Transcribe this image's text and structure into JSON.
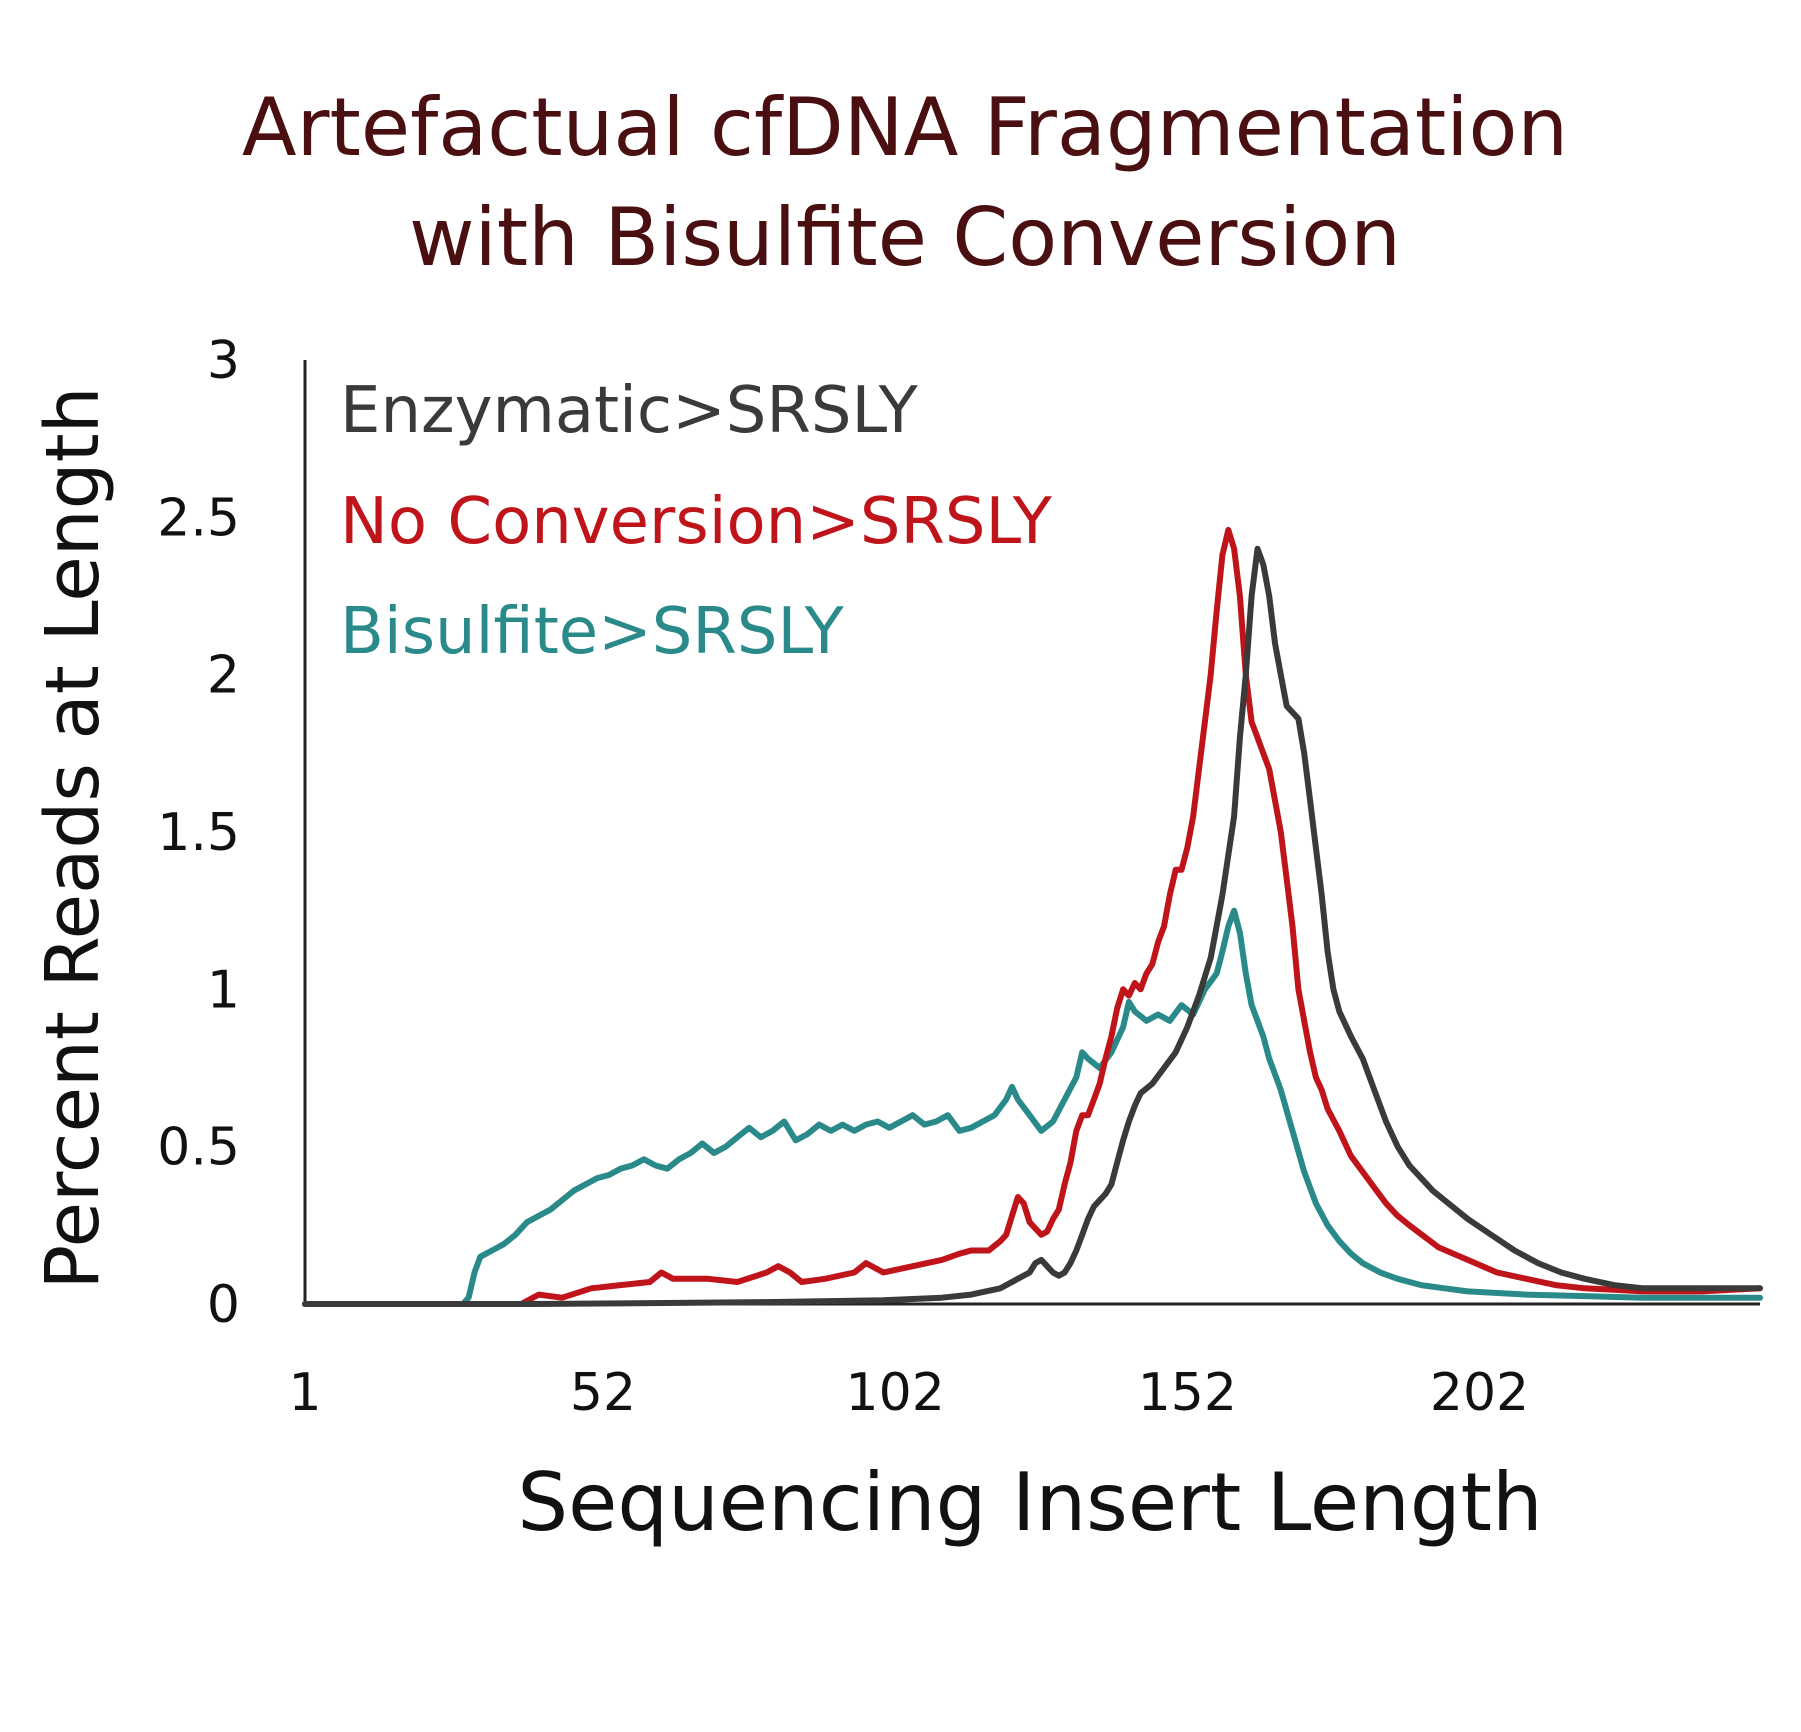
{
  "chart_data": {
    "type": "line",
    "title": [
      "Artefactual cfDNA Fragmentation",
      "with Bisulfite Conversion"
    ],
    "xlabel": "Sequencing Insert Length",
    "ylabel": "Percent Reads at Length",
    "xlim": [
      1,
      250
    ],
    "ylim": [
      0,
      3
    ],
    "x_ticks": [
      "1",
      "52",
      "102",
      "152",
      "202"
    ],
    "y_ticks": [
      "0",
      "0.5",
      "1",
      "1.5",
      "2",
      "2.5",
      "3"
    ],
    "grid": false,
    "legend_position": "top-left",
    "colors": {
      "title": "#4a0f10",
      "axis_text": "#111111",
      "axis_line": "#222222"
    },
    "series": [
      {
        "name": "Enzymatic>SRSLY",
        "color": "#3a3a3a",
        "points": [
          [
            1,
            0
          ],
          [
            40,
            0
          ],
          [
            60,
            0.003
          ],
          [
            80,
            0.006
          ],
          [
            100,
            0.012
          ],
          [
            110,
            0.02
          ],
          [
            115,
            0.03
          ],
          [
            120,
            0.05
          ],
          [
            123,
            0.08
          ],
          [
            125,
            0.1
          ],
          [
            126,
            0.13
          ],
          [
            127,
            0.14
          ],
          [
            128,
            0.12
          ],
          [
            129,
            0.1
          ],
          [
            130,
            0.09
          ],
          [
            131,
            0.1
          ],
          [
            132,
            0.13
          ],
          [
            133,
            0.17
          ],
          [
            134,
            0.22
          ],
          [
            135,
            0.27
          ],
          [
            136,
            0.31
          ],
          [
            137,
            0.33
          ],
          [
            138,
            0.35
          ],
          [
            139,
            0.38
          ],
          [
            140,
            0.45
          ],
          [
            141,
            0.52
          ],
          [
            142,
            0.58
          ],
          [
            143,
            0.63
          ],
          [
            144,
            0.67
          ],
          [
            146,
            0.7
          ],
          [
            148,
            0.75
          ],
          [
            150,
            0.8
          ],
          [
            152,
            0.88
          ],
          [
            154,
            0.98
          ],
          [
            156,
            1.1
          ],
          [
            158,
            1.3
          ],
          [
            160,
            1.55
          ],
          [
            161,
            1.8
          ],
          [
            162,
            2.0
          ],
          [
            163,
            2.25
          ],
          [
            164,
            2.4
          ],
          [
            165,
            2.35
          ],
          [
            166,
            2.25
          ],
          [
            167,
            2.1
          ],
          [
            168,
            2.0
          ],
          [
            169,
            1.9
          ],
          [
            170,
            1.88
          ],
          [
            171,
            1.86
          ],
          [
            172,
            1.75
          ],
          [
            173,
            1.6
          ],
          [
            174,
            1.45
          ],
          [
            175,
            1.3
          ],
          [
            176,
            1.12
          ],
          [
            177,
            1.0
          ],
          [
            178,
            0.93
          ],
          [
            180,
            0.85
          ],
          [
            182,
            0.78
          ],
          [
            184,
            0.68
          ],
          [
            186,
            0.58
          ],
          [
            188,
            0.5
          ],
          [
            190,
            0.44
          ],
          [
            192,
            0.4
          ],
          [
            194,
            0.36
          ],
          [
            196,
            0.33
          ],
          [
            198,
            0.3
          ],
          [
            200,
            0.27
          ],
          [
            204,
            0.22
          ],
          [
            208,
            0.17
          ],
          [
            212,
            0.13
          ],
          [
            216,
            0.1
          ],
          [
            220,
            0.08
          ],
          [
            225,
            0.06
          ],
          [
            230,
            0.05
          ],
          [
            240,
            0.05
          ],
          [
            245,
            0.05
          ],
          [
            250,
            0.05
          ]
        ]
      },
      {
        "name": "No Conversion>SRSLY",
        "color": "#c0141b",
        "points": [
          [
            1,
            0
          ],
          [
            38,
            0
          ],
          [
            39,
            0.01
          ],
          [
            41,
            0.03
          ],
          [
            45,
            0.02
          ],
          [
            50,
            0.05
          ],
          [
            55,
            0.06
          ],
          [
            60,
            0.07
          ],
          [
            62,
            0.1
          ],
          [
            64,
            0.08
          ],
          [
            70,
            0.08
          ],
          [
            75,
            0.07
          ],
          [
            80,
            0.1
          ],
          [
            82,
            0.12
          ],
          [
            84,
            0.1
          ],
          [
            86,
            0.07
          ],
          [
            90,
            0.08
          ],
          [
            95,
            0.1
          ],
          [
            97,
            0.13
          ],
          [
            100,
            0.1
          ],
          [
            105,
            0.12
          ],
          [
            110,
            0.14
          ],
          [
            113,
            0.16
          ],
          [
            115,
            0.17
          ],
          [
            118,
            0.17
          ],
          [
            120,
            0.2
          ],
          [
            121,
            0.22
          ],
          [
            122,
            0.28
          ],
          [
            123,
            0.34
          ],
          [
            124,
            0.32
          ],
          [
            125,
            0.26
          ],
          [
            126,
            0.24
          ],
          [
            127,
            0.22
          ],
          [
            128,
            0.23
          ],
          [
            129,
            0.27
          ],
          [
            130,
            0.3
          ],
          [
            131,
            0.38
          ],
          [
            132,
            0.45
          ],
          [
            133,
            0.55
          ],
          [
            134,
            0.6
          ],
          [
            135,
            0.6
          ],
          [
            136,
            0.65
          ],
          [
            137,
            0.7
          ],
          [
            138,
            0.78
          ],
          [
            139,
            0.85
          ],
          [
            140,
            0.94
          ],
          [
            141,
            1.0
          ],
          [
            142,
            0.98
          ],
          [
            143,
            1.02
          ],
          [
            144,
            1.0
          ],
          [
            145,
            1.05
          ],
          [
            146,
            1.08
          ],
          [
            147,
            1.15
          ],
          [
            148,
            1.2
          ],
          [
            149,
            1.3
          ],
          [
            150,
            1.38
          ],
          [
            151,
            1.38
          ],
          [
            152,
            1.45
          ],
          [
            153,
            1.55
          ],
          [
            154,
            1.7
          ],
          [
            155,
            1.85
          ],
          [
            156,
            2.0
          ],
          [
            157,
            2.2
          ],
          [
            158,
            2.38
          ],
          [
            159,
            2.46
          ],
          [
            160,
            2.4
          ],
          [
            161,
            2.25
          ],
          [
            162,
            2.0
          ],
          [
            163,
            1.85
          ],
          [
            164,
            1.8
          ],
          [
            165,
            1.75
          ],
          [
            166,
            1.7
          ],
          [
            167,
            1.6
          ],
          [
            168,
            1.5
          ],
          [
            169,
            1.35
          ],
          [
            170,
            1.2
          ],
          [
            171,
            1.0
          ],
          [
            172,
            0.9
          ],
          [
            173,
            0.8
          ],
          [
            174,
            0.72
          ],
          [
            175,
            0.68
          ],
          [
            176,
            0.62
          ],
          [
            178,
            0.55
          ],
          [
            180,
            0.47
          ],
          [
            182,
            0.42
          ],
          [
            184,
            0.37
          ],
          [
            186,
            0.32
          ],
          [
            188,
            0.28
          ],
          [
            190,
            0.25
          ],
          [
            195,
            0.18
          ],
          [
            200,
            0.14
          ],
          [
            205,
            0.1
          ],
          [
            210,
            0.08
          ],
          [
            215,
            0.06
          ],
          [
            220,
            0.05
          ],
          [
            225,
            0.045
          ],
          [
            230,
            0.04
          ],
          [
            240,
            0.04
          ],
          [
            250,
            0.05
          ]
        ]
      },
      {
        "name": "Bisulfite>SRSLY",
        "color": "#2a8a8a",
        "points": [
          [
            1,
            0
          ],
          [
            28,
            0
          ],
          [
            29,
            0.02
          ],
          [
            30,
            0.1
          ],
          [
            31,
            0.15
          ],
          [
            33,
            0.17
          ],
          [
            35,
            0.19
          ],
          [
            37,
            0.22
          ],
          [
            39,
            0.26
          ],
          [
            41,
            0.28
          ],
          [
            43,
            0.3
          ],
          [
            45,
            0.33
          ],
          [
            47,
            0.36
          ],
          [
            49,
            0.38
          ],
          [
            51,
            0.4
          ],
          [
            53,
            0.41
          ],
          [
            55,
            0.43
          ],
          [
            57,
            0.44
          ],
          [
            59,
            0.46
          ],
          [
            61,
            0.44
          ],
          [
            63,
            0.43
          ],
          [
            65,
            0.46
          ],
          [
            67,
            0.48
          ],
          [
            69,
            0.51
          ],
          [
            71,
            0.48
          ],
          [
            73,
            0.5
          ],
          [
            75,
            0.53
          ],
          [
            77,
            0.56
          ],
          [
            79,
            0.53
          ],
          [
            81,
            0.55
          ],
          [
            83,
            0.58
          ],
          [
            85,
            0.52
          ],
          [
            87,
            0.54
          ],
          [
            89,
            0.57
          ],
          [
            91,
            0.55
          ],
          [
            93,
            0.57
          ],
          [
            95,
            0.55
          ],
          [
            97,
            0.57
          ],
          [
            99,
            0.58
          ],
          [
            101,
            0.56
          ],
          [
            103,
            0.58
          ],
          [
            105,
            0.6
          ],
          [
            107,
            0.57
          ],
          [
            109,
            0.58
          ],
          [
            111,
            0.6
          ],
          [
            113,
            0.55
          ],
          [
            115,
            0.56
          ],
          [
            117,
            0.58
          ],
          [
            119,
            0.6
          ],
          [
            121,
            0.65
          ],
          [
            122,
            0.69
          ],
          [
            123,
            0.65
          ],
          [
            125,
            0.6
          ],
          [
            127,
            0.55
          ],
          [
            129,
            0.58
          ],
          [
            131,
            0.65
          ],
          [
            133,
            0.72
          ],
          [
            134,
            0.8
          ],
          [
            135,
            0.78
          ],
          [
            137,
            0.75
          ],
          [
            139,
            0.8
          ],
          [
            141,
            0.88
          ],
          [
            142,
            0.96
          ],
          [
            143,
            0.93
          ],
          [
            145,
            0.9
          ],
          [
            147,
            0.92
          ],
          [
            149,
            0.9
          ],
          [
            151,
            0.95
          ],
          [
            153,
            0.92
          ],
          [
            155,
            1.0
          ],
          [
            157,
            1.05
          ],
          [
            158,
            1.12
          ],
          [
            159,
            1.2
          ],
          [
            160,
            1.25
          ],
          [
            161,
            1.18
          ],
          [
            162,
            1.05
          ],
          [
            163,
            0.95
          ],
          [
            164,
            0.9
          ],
          [
            165,
            0.85
          ],
          [
            166,
            0.78
          ],
          [
            168,
            0.68
          ],
          [
            170,
            0.55
          ],
          [
            172,
            0.42
          ],
          [
            174,
            0.32
          ],
          [
            176,
            0.25
          ],
          [
            178,
            0.2
          ],
          [
            180,
            0.16
          ],
          [
            182,
            0.13
          ],
          [
            185,
            0.1
          ],
          [
            188,
            0.08
          ],
          [
            192,
            0.06
          ],
          [
            196,
            0.05
          ],
          [
            200,
            0.04
          ],
          [
            210,
            0.03
          ],
          [
            220,
            0.025
          ],
          [
            230,
            0.02
          ],
          [
            240,
            0.02
          ],
          [
            250,
            0.02
          ]
        ]
      }
    ]
  }
}
